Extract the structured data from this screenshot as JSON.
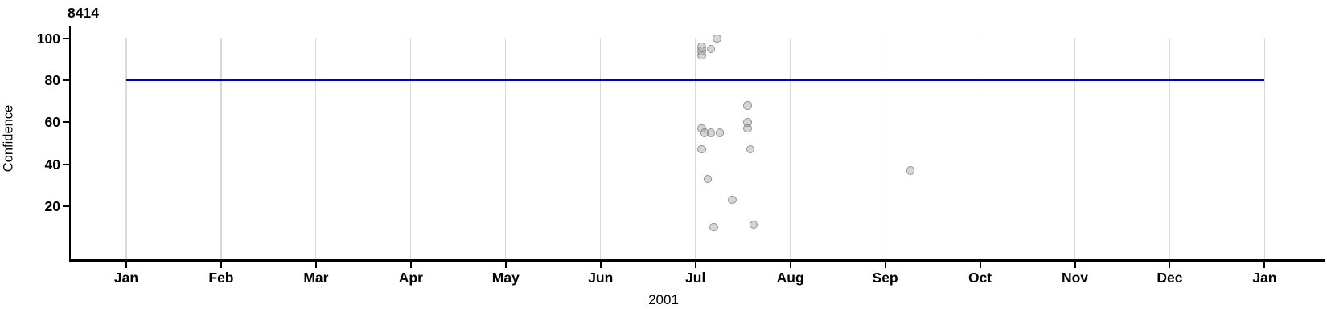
{
  "chart": {
    "title": "8414",
    "ylabel": "Confidence",
    "year_label": "2001"
  },
  "chart_data": {
    "type": "scatter",
    "title": "8414",
    "xlabel": "2001",
    "ylabel": "Confidence",
    "x_axis": {
      "tick_labels": [
        "Jan",
        "Feb",
        "Mar",
        "Apr",
        "May",
        "Jun",
        "Jul",
        "Aug",
        "Sep",
        "Oct",
        "Nov",
        "Dec",
        "Jan"
      ],
      "range_start": "2001-01-01",
      "range_end": "2002-01-01",
      "grid": true
    },
    "y_axis": {
      "ticks": [
        20,
        40,
        60,
        80,
        100
      ],
      "lim": [
        -5,
        106
      ],
      "grid": false
    },
    "legend": "none",
    "reference_line": {
      "orientation": "horizontal",
      "value": 80,
      "color": "#0000c0"
    },
    "point_style": {
      "fill": "#969696",
      "fill_opacity": 0.4,
      "stroke": "#6e6e6e",
      "stroke_opacity": 0.65
    },
    "grid_color": "#d9d9d9",
    "axis_color": "#000000",
    "points": [
      {
        "date": "2001-07-08",
        "confidence": 100
      },
      {
        "date": "2001-07-03",
        "confidence": 96
      },
      {
        "date": "2001-07-06",
        "confidence": 95
      },
      {
        "date": "2001-07-03",
        "confidence": 94
      },
      {
        "date": "2001-07-03",
        "confidence": 92
      },
      {
        "date": "2001-07-18",
        "confidence": 68
      },
      {
        "date": "2001-07-18",
        "confidence": 60
      },
      {
        "date": "2001-07-18",
        "confidence": 57
      },
      {
        "date": "2001-07-03",
        "confidence": 57
      },
      {
        "date": "2001-07-04",
        "confidence": 55
      },
      {
        "date": "2001-07-06",
        "confidence": 55
      },
      {
        "date": "2001-07-09",
        "confidence": 55
      },
      {
        "date": "2001-07-03",
        "confidence": 47
      },
      {
        "date": "2001-07-19",
        "confidence": 47
      },
      {
        "date": "2001-07-05",
        "confidence": 33
      },
      {
        "date": "2001-07-13",
        "confidence": 23
      },
      {
        "date": "2001-09-09",
        "confidence": 37
      },
      {
        "date": "2001-07-07",
        "confidence": 10
      },
      {
        "date": "2001-07-20",
        "confidence": 11
      }
    ]
  }
}
